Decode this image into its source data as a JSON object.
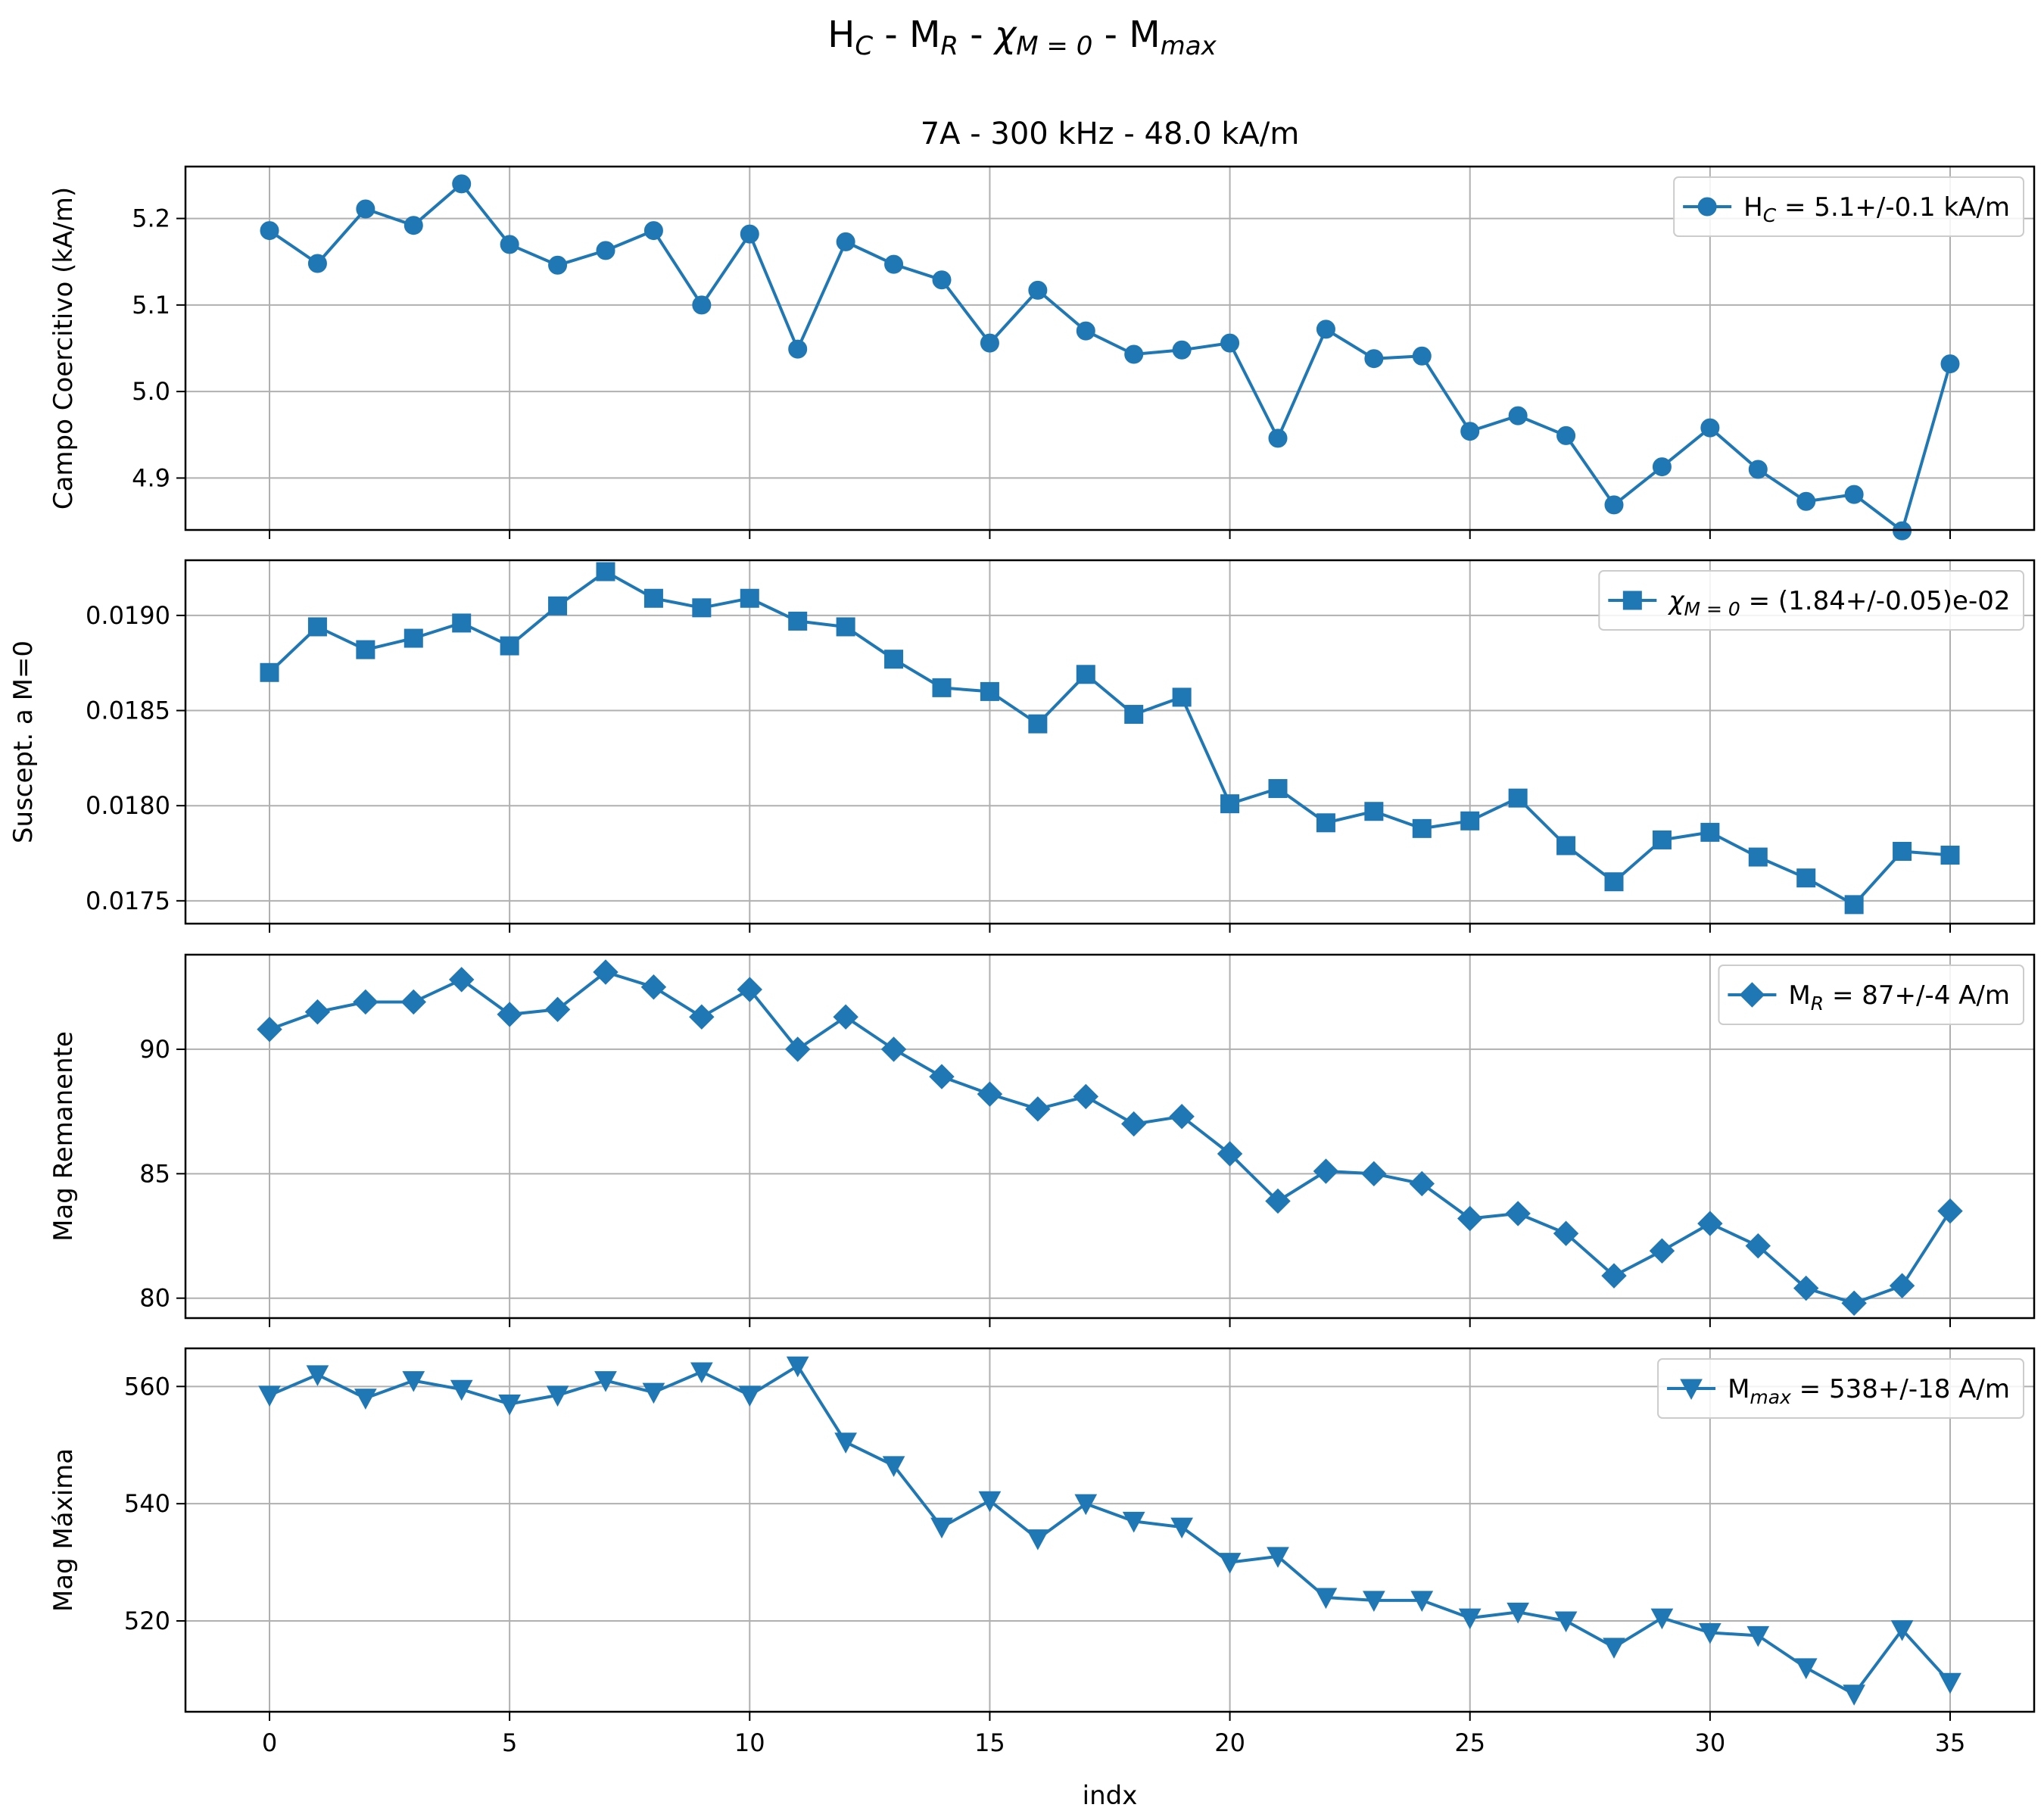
{
  "figure": {
    "suptitle": {
      "base": [
        "H",
        "M",
        "χ",
        "M"
      ],
      "sub": [
        "C",
        "R",
        "M = 0",
        "max"
      ],
      "sep": " - "
    },
    "subtitle": "7A - 300 kHz - 48.0 kA/m",
    "xlabel": "indx"
  },
  "colors": {
    "series": "#1f77b4",
    "grid": "#b0b0b0",
    "axes": "#000000"
  },
  "chart_data": [
    {
      "type": "line",
      "ylabel": "Campo Coercitivo (kA/m)",
      "ylim": [
        4.84,
        5.26
      ],
      "yticks": [
        4.9,
        5.0,
        5.1,
        5.2
      ],
      "ytick_labels": [
        "4.9",
        "5.0",
        "5.1",
        "5.2"
      ],
      "xlim": [
        -1.75,
        36.75
      ],
      "xticks": [
        0,
        5,
        10,
        15,
        20,
        25,
        30,
        35
      ],
      "xtick_labels": [
        "0",
        "5",
        "10",
        "15",
        "20",
        "25",
        "30",
        "35"
      ],
      "grid": true,
      "legend_position": "top-right",
      "marker": "circle",
      "series": [
        {
          "name": {
            "base": "H",
            "sub": "C",
            "rest": " = 5.1+/-0.1 kA/m"
          },
          "x": [
            0,
            1,
            2,
            3,
            4,
            5,
            6,
            7,
            8,
            9,
            10,
            11,
            12,
            13,
            14,
            15,
            16,
            17,
            18,
            19,
            20,
            21,
            22,
            23,
            24,
            25,
            26,
            27,
            28,
            29,
            30,
            31,
            32,
            33,
            34,
            35
          ],
          "values": [
            5.186,
            5.148,
            5.211,
            5.192,
            5.24,
            5.17,
            5.146,
            5.163,
            5.186,
            5.1,
            5.182,
            5.049,
            5.173,
            5.147,
            5.129,
            5.056,
            5.117,
            5.07,
            5.043,
            5.048,
            5.056,
            4.946,
            5.072,
            5.038,
            5.041,
            4.954,
            4.972,
            4.949,
            4.869,
            4.913,
            4.958,
            4.91,
            4.873,
            4.881,
            4.839,
            5.032
          ]
        }
      ]
    },
    {
      "type": "line",
      "ylabel": "Suscept. a M=0",
      "ylim": [
        0.01738,
        0.01929
      ],
      "yticks": [
        0.0175,
        0.018,
        0.0185,
        0.019
      ],
      "ytick_labels": [
        "0.0175",
        "0.0180",
        "0.0185",
        "0.0190"
      ],
      "xlim": [
        -1.75,
        36.75
      ],
      "xticks": [
        0,
        5,
        10,
        15,
        20,
        25,
        30,
        35
      ],
      "grid": true,
      "legend_position": "top-right",
      "marker": "square",
      "series": [
        {
          "name": {
            "base": "χ",
            "sub": "M = 0",
            "rest": " = (1.84+/-0.05)e-02"
          },
          "x": [
            0,
            1,
            2,
            3,
            4,
            5,
            6,
            7,
            8,
            9,
            10,
            11,
            12,
            13,
            14,
            15,
            16,
            17,
            18,
            19,
            20,
            21,
            22,
            23,
            24,
            25,
            26,
            27,
            28,
            29,
            30,
            31,
            32,
            33,
            34,
            35
          ],
          "values": [
            0.0187,
            0.01894,
            0.01882,
            0.01888,
            0.01896,
            0.01884,
            0.01905,
            0.01923,
            0.01909,
            0.01904,
            0.01909,
            0.01897,
            0.01894,
            0.01877,
            0.01862,
            0.0186,
            0.01843,
            0.01869,
            0.01848,
            0.01857,
            0.01801,
            0.01809,
            0.01791,
            0.01797,
            0.01788,
            0.01792,
            0.01804,
            0.01779,
            0.0176,
            0.01782,
            0.01786,
            0.01773,
            0.01762,
            0.01748,
            0.01776,
            0.01774
          ]
        }
      ]
    },
    {
      "type": "line",
      "ylabel": "Mag Remanente",
      "ylim": [
        79.2,
        93.8
      ],
      "yticks": [
        80,
        85,
        90
      ],
      "ytick_labels": [
        "80",
        "85",
        "90"
      ],
      "xlim": [
        -1.75,
        36.75
      ],
      "xticks": [
        0,
        5,
        10,
        15,
        20,
        25,
        30,
        35
      ],
      "grid": true,
      "legend_position": "top-right",
      "marker": "diamond",
      "series": [
        {
          "name": {
            "base": "M",
            "sub": "R",
            "rest": " = 87+/-4 A/m"
          },
          "x": [
            0,
            1,
            2,
            3,
            4,
            5,
            6,
            7,
            8,
            9,
            10,
            11,
            12,
            13,
            14,
            15,
            16,
            17,
            18,
            19,
            20,
            21,
            22,
            23,
            24,
            25,
            26,
            27,
            28,
            29,
            30,
            31,
            32,
            33,
            34,
            35
          ],
          "values": [
            90.8,
            91.5,
            91.9,
            91.9,
            92.8,
            91.4,
            91.6,
            93.1,
            92.5,
            91.3,
            92.4,
            90.0,
            91.3,
            90.0,
            88.9,
            88.2,
            87.6,
            88.1,
            87.0,
            87.3,
            85.8,
            83.9,
            85.1,
            85.0,
            84.6,
            83.2,
            83.4,
            82.6,
            80.9,
            81.9,
            83.0,
            82.1,
            80.4,
            79.8,
            80.5,
            83.5
          ]
        }
      ]
    },
    {
      "type": "line",
      "ylabel": "Mag Máxima",
      "ylim": [
        504.5,
        566.5
      ],
      "yticks": [
        520,
        540,
        560
      ],
      "ytick_labels": [
        "520",
        "540",
        "560"
      ],
      "xlim": [
        -1.75,
        36.75
      ],
      "xticks": [
        0,
        5,
        10,
        15,
        20,
        25,
        30,
        35
      ],
      "xtick_labels": [
        "0",
        "5",
        "10",
        "15",
        "20",
        "25",
        "30",
        "35"
      ],
      "grid": true,
      "legend_position": "top-right",
      "marker": "triangle-down",
      "series": [
        {
          "name": {
            "base": "M",
            "sub": "max",
            "rest": " = 538+/-18 A/m"
          },
          "x": [
            0,
            1,
            2,
            3,
            4,
            5,
            6,
            7,
            8,
            9,
            10,
            11,
            12,
            13,
            14,
            15,
            16,
            17,
            18,
            19,
            20,
            21,
            22,
            23,
            24,
            25,
            26,
            27,
            28,
            29,
            30,
            31,
            32,
            33,
            34,
            35
          ],
          "values": [
            558.5,
            562.0,
            558.0,
            561.0,
            559.5,
            557.0,
            558.5,
            561.0,
            559.0,
            562.5,
            558.5,
            563.5,
            550.5,
            546.5,
            536.0,
            540.5,
            534.0,
            540.0,
            537.0,
            536.0,
            530.0,
            531.0,
            524.0,
            523.5,
            523.5,
            520.5,
            521.5,
            520.0,
            515.5,
            520.5,
            518.0,
            517.5,
            512.0,
            507.5,
            518.5,
            509.5
          ]
        }
      ]
    }
  ]
}
